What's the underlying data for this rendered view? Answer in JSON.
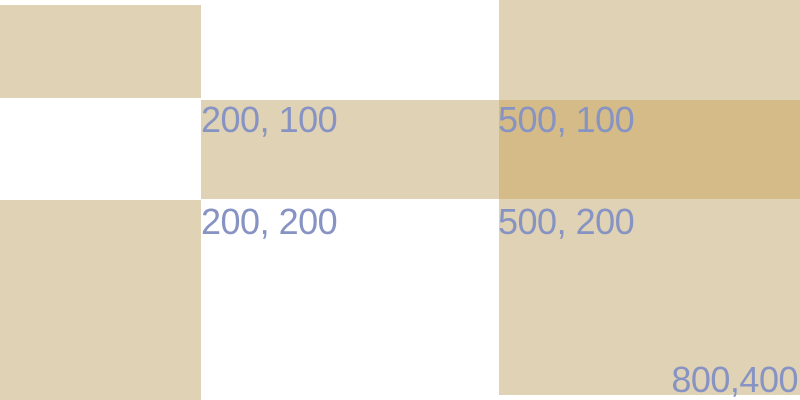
{
  "colors": {
    "background": "#ffffff",
    "block_fill": "#e0d2b4",
    "overlap_fill": "#d4bb88",
    "label_text": "#8693c3"
  },
  "labels": {
    "p_200_100": "200, 100",
    "p_500_100": "500, 100",
    "p_200_200": "200, 200",
    "p_500_200": "500, 200",
    "p_800_400": "800,400"
  }
}
